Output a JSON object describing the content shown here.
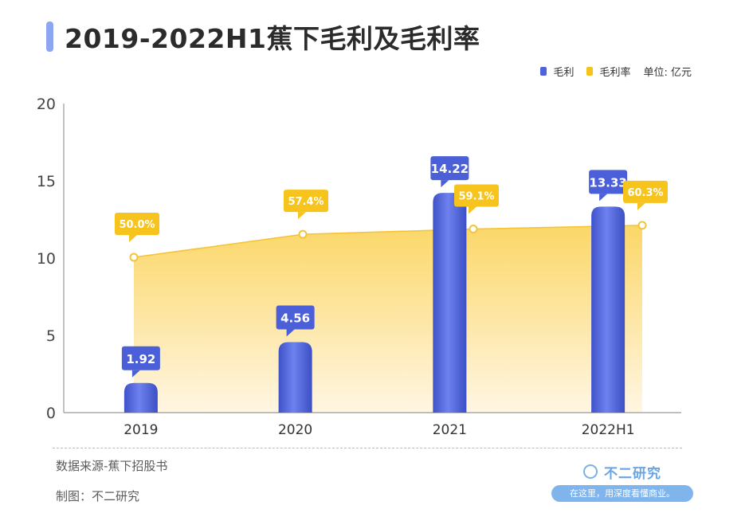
{
  "page": {
    "title": "2019-2022H1蕉下毛利及毛利率",
    "source_label": "数据来源-蕉下招股书",
    "maker_label": "制图：不二研究",
    "brand": {
      "name": "不二研究",
      "slogan": "在这里，用深度看懂商业。"
    }
  },
  "legend": {
    "items": [
      {
        "name": "毛利",
        "color": "#4d63db"
      },
      {
        "name": "毛利率",
        "color": "#f6c21c"
      }
    ],
    "unit": "单位: 亿元"
  },
  "colors": {
    "bar": "#4d63db",
    "bar_label_bg": "#4a5fd8",
    "rate_label_bg": "#f7c31d",
    "area_top": "#fbd768",
    "area_bottom": "#fff6e3",
    "axis": "#999999"
  },
  "chart_data": {
    "type": "bar",
    "categories": [
      "2019",
      "2020",
      "2021",
      "2022H1"
    ],
    "series": [
      {
        "name": "毛利",
        "type": "bar",
        "values": [
          1.92,
          4.56,
          14.22,
          13.33
        ],
        "labels": [
          "1.92",
          "4.56",
          "14.22",
          "13.33"
        ]
      },
      {
        "name": "毛利率",
        "type": "area",
        "values": [
          50.0,
          57.4,
          59.1,
          60.3
        ],
        "labels": [
          "50.0%",
          "57.4%",
          "59.1%",
          "60.3%"
        ]
      }
    ],
    "ylim": [
      0,
      20
    ],
    "yticks": [
      0,
      5,
      10,
      15,
      20
    ],
    "xlabel": "",
    "ylabel": "",
    "legend_position": "top-right",
    "grid": false
  }
}
